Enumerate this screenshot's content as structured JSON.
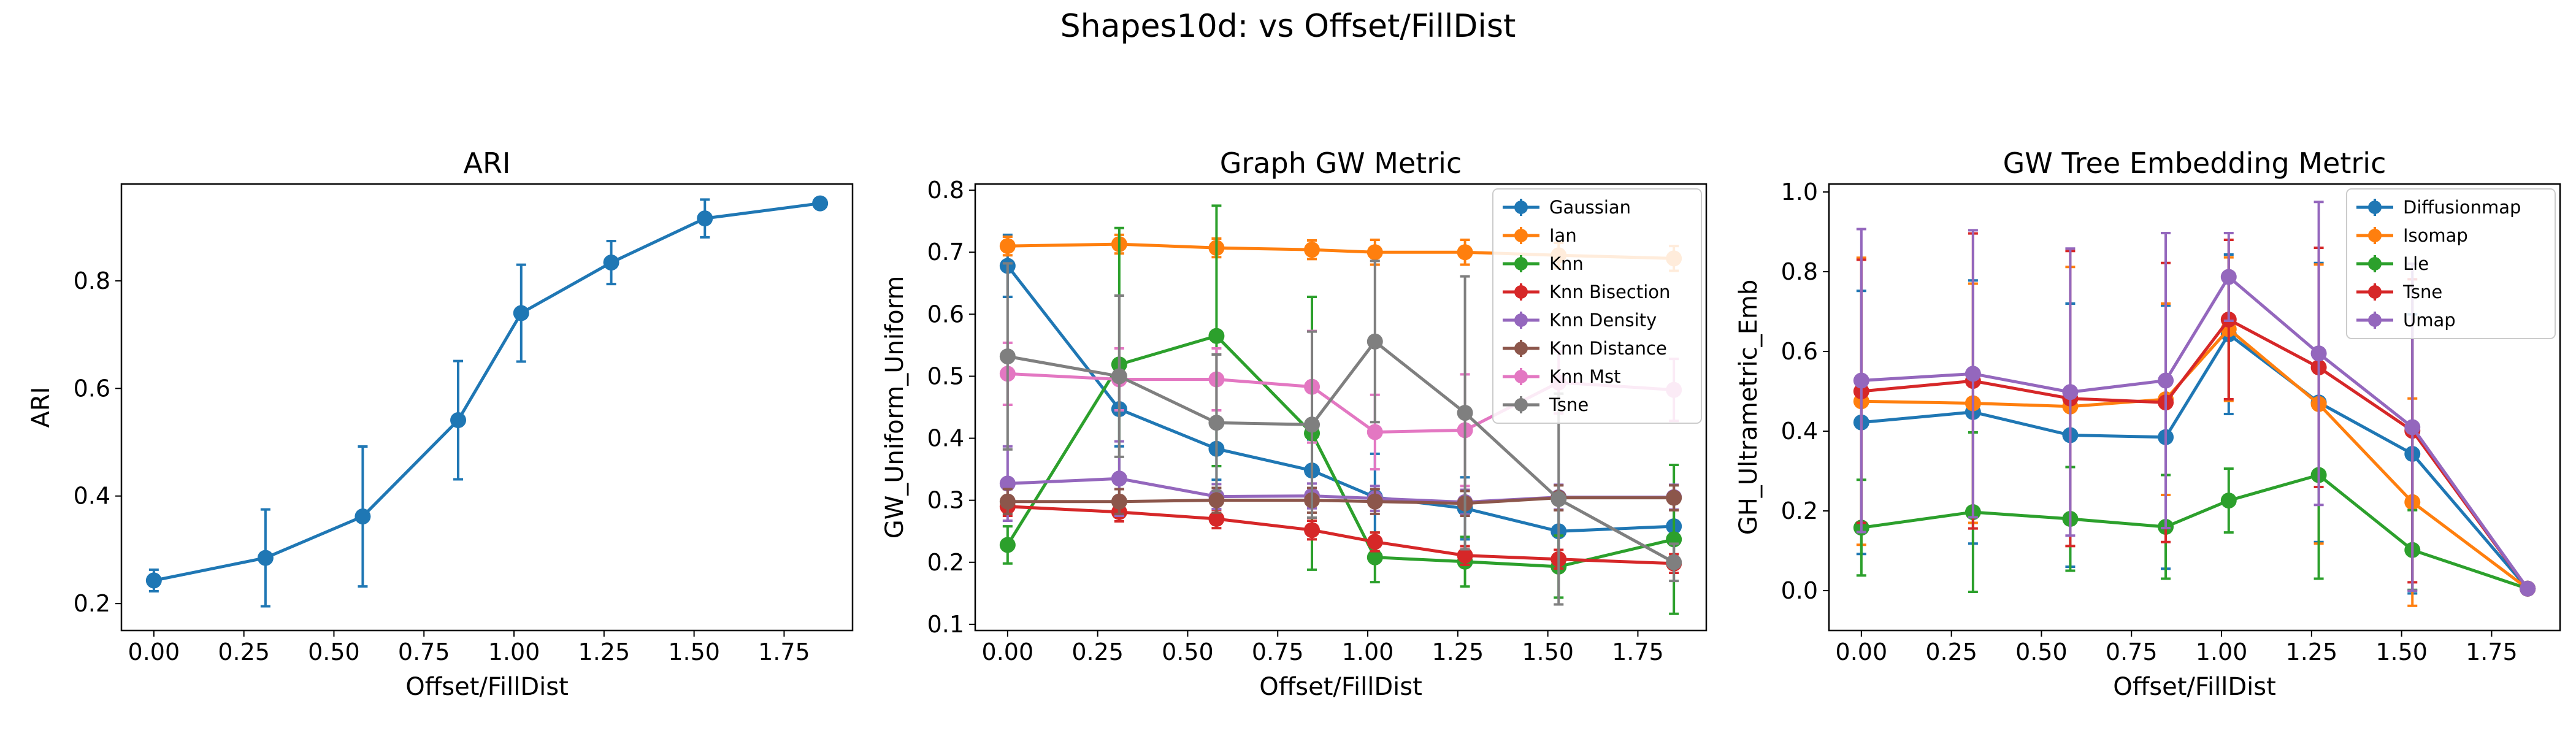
{
  "suptitle": "Shapes10d: vs Offset/FillDist",
  "chart_data": [
    {
      "type": "line",
      "title": "ARI",
      "xlabel": "Offset/FillDist",
      "ylabel": "ARI",
      "xlim": [
        -0.09,
        1.94
      ],
      "ylim": [
        0.15,
        0.98
      ],
      "xticks": [
        "0.00",
        "0.25",
        "0.50",
        "0.75",
        "1.00",
        "1.25",
        "1.50",
        "1.75"
      ],
      "yticks": [
        "0.2",
        "0.4",
        "0.6",
        "0.8"
      ],
      "legend": null,
      "x": [
        0.0,
        0.31,
        0.58,
        0.845,
        1.02,
        1.27,
        1.53,
        1.85
      ],
      "series": [
        {
          "color": "#1f77b4",
          "values": [
            0.243,
            0.285,
            0.362,
            0.541,
            0.74,
            0.834,
            0.916,
            0.944
          ],
          "err": [
            0.02,
            0.09,
            0.13,
            0.11,
            0.09,
            0.04,
            0.035,
            0.0
          ]
        }
      ]
    },
    {
      "type": "line",
      "title": "Graph GW Metric",
      "xlabel": "Offset/FillDist",
      "ylabel": "GW_Uniform_Uniform",
      "xlim": [
        -0.09,
        1.94
      ],
      "ylim": [
        0.09,
        0.81
      ],
      "xticks": [
        "0.00",
        "0.25",
        "0.50",
        "0.75",
        "1.00",
        "1.25",
        "1.50",
        "1.75"
      ],
      "yticks": [
        "0.1",
        "0.2",
        "0.3",
        "0.4",
        "0.5",
        "0.6",
        "0.7",
        "0.8"
      ],
      "legend": "top-right",
      "x": [
        0.0,
        0.31,
        0.58,
        0.845,
        1.02,
        1.27,
        1.53,
        1.85
      ],
      "series": [
        {
          "name": "Gaussian",
          "color": "#1f77b4",
          "values": [
            0.678,
            0.447,
            0.383,
            0.348,
            0.305,
            0.287,
            0.25,
            0.258
          ],
          "err": [
            0.05,
            0.06,
            0.05,
            0.05,
            0.07,
            0.05,
            0.05,
            0.05
          ]
        },
        {
          "name": "Ian",
          "color": "#ff7f0e",
          "values": [
            0.71,
            0.713,
            0.707,
            0.704,
            0.7,
            0.7,
            0.695,
            0.69
          ],
          "err": [
            0.015,
            0.015,
            0.015,
            0.015,
            0.02,
            0.02,
            0.02,
            0.02
          ]
        },
        {
          "name": "Knn",
          "color": "#2ca02c",
          "values": [
            0.228,
            0.519,
            0.565,
            0.408,
            0.208,
            0.201,
            0.193,
            0.237
          ],
          "err": [
            0.03,
            0.22,
            0.21,
            0.22,
            0.04,
            0.04,
            0.05,
            0.12
          ]
        },
        {
          "name": "Knn Bisection",
          "color": "#d62728",
          "values": [
            0.29,
            0.281,
            0.27,
            0.252,
            0.233,
            0.211,
            0.205,
            0.198
          ],
          "err": [
            0.015,
            0.015,
            0.015,
            0.015,
            0.015,
            0.015,
            0.015,
            0.015
          ]
        },
        {
          "name": "Knn Density",
          "color": "#9467bd",
          "values": [
            0.327,
            0.335,
            0.306,
            0.307,
            0.303,
            0.297,
            0.305,
            0.305
          ],
          "err": [
            0.06,
            0.06,
            0.02,
            0.02,
            0.02,
            0.02,
            0.02,
            0.02
          ]
        },
        {
          "name": "Knn Distance",
          "color": "#8c564b",
          "values": [
            0.298,
            0.298,
            0.3,
            0.3,
            0.298,
            0.295,
            0.304,
            0.304
          ],
          "err": [
            0.02,
            0.02,
            0.02,
            0.02,
            0.02,
            0.02,
            0.02,
            0.02
          ]
        },
        {
          "name": "Knn Mst",
          "color": "#e377c2",
          "values": [
            0.504,
            0.495,
            0.495,
            0.483,
            0.41,
            0.413,
            0.49,
            0.478
          ],
          "err": [
            0.05,
            0.05,
            0.05,
            0.09,
            0.06,
            0.09,
            0.05,
            0.05
          ]
        },
        {
          "name": "Tsne",
          "color": "#7f7f7f",
          "values": [
            0.532,
            0.5,
            0.425,
            0.422,
            0.556,
            0.441,
            0.302,
            0.2
          ],
          "err": [
            0.15,
            0.13,
            0.11,
            0.15,
            0.13,
            0.22,
            0.17,
            0.03
          ]
        }
      ]
    },
    {
      "type": "line",
      "title": "GW Tree Embedding Metric",
      "xlabel": "Offset/FillDist",
      "ylabel": "GH_Ultrametric_Emb",
      "xlim": [
        -0.09,
        1.94
      ],
      "ylim": [
        -0.1,
        1.02
      ],
      "xticks": [
        "0.00",
        "0.25",
        "0.50",
        "0.75",
        "1.00",
        "1.25",
        "1.50",
        "1.75"
      ],
      "yticks": [
        "0.0",
        "0.2",
        "0.4",
        "0.6",
        "0.8",
        "1.0"
      ],
      "legend": "top-right",
      "x": [
        0.0,
        0.31,
        0.58,
        0.845,
        1.02,
        1.27,
        1.53,
        1.85
      ],
      "series": [
        {
          "name": "Diffusionmap",
          "color": "#1f77b4",
          "values": [
            0.422,
            0.448,
            0.39,
            0.385,
            0.643,
            0.472,
            0.343,
            0.005
          ],
          "err": [
            0.33,
            0.33,
            0.33,
            0.33,
            0.2,
            0.35,
            0.35,
            0.0
          ]
        },
        {
          "name": "Isomap",
          "color": "#ff7f0e",
          "values": [
            0.475,
            0.47,
            0.462,
            0.48,
            0.656,
            0.468,
            0.222,
            0.005
          ],
          "err": [
            0.36,
            0.3,
            0.35,
            0.24,
            0.18,
            0.35,
            0.26,
            0.0
          ]
        },
        {
          "name": "Lle",
          "color": "#2ca02c",
          "values": [
            0.158,
            0.197,
            0.18,
            0.16,
            0.226,
            0.29,
            0.102,
            0.005
          ],
          "err": [
            0.12,
            0.2,
            0.13,
            0.13,
            0.08,
            0.26,
            0.1,
            0.0
          ]
        },
        {
          "name": "Tsne",
          "color": "#d62728",
          "values": [
            0.5,
            0.526,
            0.482,
            0.472,
            0.68,
            0.56,
            0.401,
            0.005
          ],
          "err": [
            0.33,
            0.37,
            0.37,
            0.35,
            0.2,
            0.3,
            0.38,
            0.0
          ]
        },
        {
          "name": "Umap",
          "color": "#9467bd",
          "values": [
            0.527,
            0.544,
            0.498,
            0.527,
            0.787,
            0.595,
            0.41,
            0.005
          ],
          "err": [
            0.38,
            0.36,
            0.36,
            0.37,
            0.11,
            0.38,
            0.41,
            0.0
          ]
        }
      ]
    }
  ]
}
